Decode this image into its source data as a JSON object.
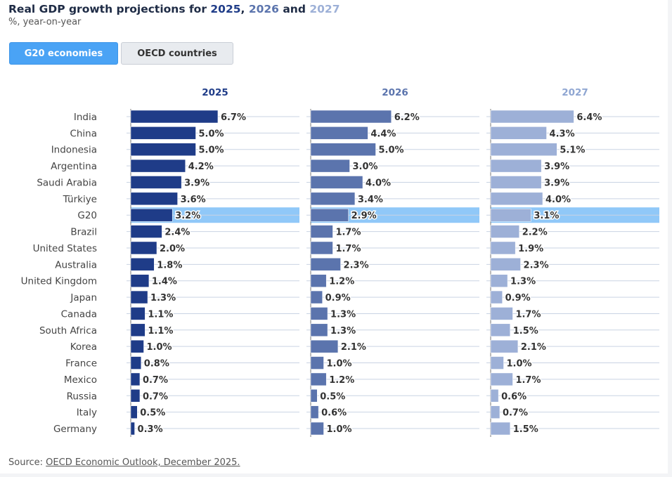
{
  "title": {
    "prefix": "Real GDP growth projections for ",
    "y1": "2025",
    "sep1": ", ",
    "y2": "2026",
    "sep2": " and ",
    "y3": "2027"
  },
  "subtitle": "%, year-on-year",
  "tabs": [
    {
      "label": "G20 economies",
      "active": true
    },
    {
      "label": "OECD countries",
      "active": false
    }
  ],
  "source": {
    "prefix": "Source: ",
    "link": "OECD Economic Outlook, December 2025."
  },
  "chart_data": {
    "type": "bar",
    "orientation": "horizontal",
    "categories": [
      "India",
      "China",
      "Indonesia",
      "Argentina",
      "Saudi Arabia",
      "Türkiye",
      "G20",
      "Brazil",
      "United States",
      "Australia",
      "United Kingdom",
      "Japan",
      "Canada",
      "South Africa",
      "Korea",
      "France",
      "Mexico",
      "Russia",
      "Italy",
      "Germany"
    ],
    "highlight": "G20",
    "highlight_color": "#90c8f8",
    "unit": "%",
    "series": [
      {
        "name": "2025",
        "color": "#1f3c88",
        "values": [
          6.7,
          5.0,
          5.0,
          4.2,
          3.9,
          3.6,
          3.2,
          2.4,
          2.0,
          1.8,
          1.4,
          1.3,
          1.1,
          1.1,
          1.0,
          0.8,
          0.7,
          0.7,
          0.5,
          0.3
        ]
      },
      {
        "name": "2026",
        "color": "#5b74ad",
        "values": [
          6.2,
          4.4,
          5.0,
          3.0,
          4.0,
          3.4,
          2.9,
          1.7,
          1.7,
          2.3,
          1.2,
          0.9,
          1.3,
          1.3,
          2.1,
          1.0,
          1.2,
          0.5,
          0.6,
          1.0
        ]
      },
      {
        "name": "2027",
        "color": "#9db0d7",
        "values": [
          6.4,
          4.3,
          5.1,
          3.9,
          3.9,
          4.0,
          3.1,
          2.2,
          1.9,
          2.3,
          1.3,
          0.9,
          1.7,
          1.5,
          2.1,
          1.0,
          1.7,
          0.6,
          0.7,
          1.5
        ]
      }
    ],
    "grid": true,
    "data_labels": true
  }
}
